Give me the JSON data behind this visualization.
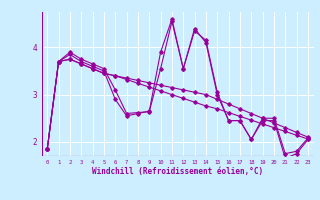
{
  "xlabel": "Windchill (Refroidissement éolien,°C)",
  "bg_color": "#cceeff",
  "line_color": "#990099",
  "xlim": [
    -0.5,
    23.5
  ],
  "ylim": [
    1.7,
    4.75
  ],
  "xticks": [
    0,
    1,
    2,
    3,
    4,
    5,
    6,
    7,
    8,
    9,
    10,
    11,
    12,
    13,
    14,
    15,
    16,
    17,
    18,
    19,
    20,
    21,
    22,
    23
  ],
  "yticks": [
    2,
    3,
    4
  ],
  "series": [
    [
      1.85,
      3.7,
      3.85,
      3.7,
      3.6,
      3.5,
      2.9,
      2.55,
      2.6,
      2.65,
      3.9,
      4.6,
      3.55,
      4.4,
      4.1,
      3.0,
      2.45,
      2.45,
      2.05,
      2.45,
      2.45,
      1.65,
      1.75,
      2.05
    ],
    [
      1.85,
      3.7,
      3.75,
      3.65,
      3.55,
      3.45,
      3.4,
      3.35,
      3.3,
      3.25,
      3.2,
      3.15,
      3.1,
      3.05,
      3.0,
      2.9,
      2.8,
      2.7,
      2.6,
      2.5,
      2.4,
      2.3,
      2.2,
      2.1
    ],
    [
      1.85,
      3.7,
      3.75,
      3.65,
      3.55,
      3.45,
      3.4,
      3.32,
      3.24,
      3.16,
      3.08,
      3.0,
      2.92,
      2.84,
      2.76,
      2.7,
      2.62,
      2.54,
      2.46,
      2.38,
      2.3,
      2.22,
      2.14,
      2.06
    ],
    [
      1.85,
      3.7,
      3.9,
      3.75,
      3.65,
      3.55,
      3.1,
      2.6,
      2.62,
      2.64,
      3.55,
      4.55,
      3.55,
      4.35,
      4.15,
      3.05,
      2.45,
      2.45,
      2.05,
      2.5,
      2.5,
      1.75,
      1.8,
      2.08
    ]
  ]
}
